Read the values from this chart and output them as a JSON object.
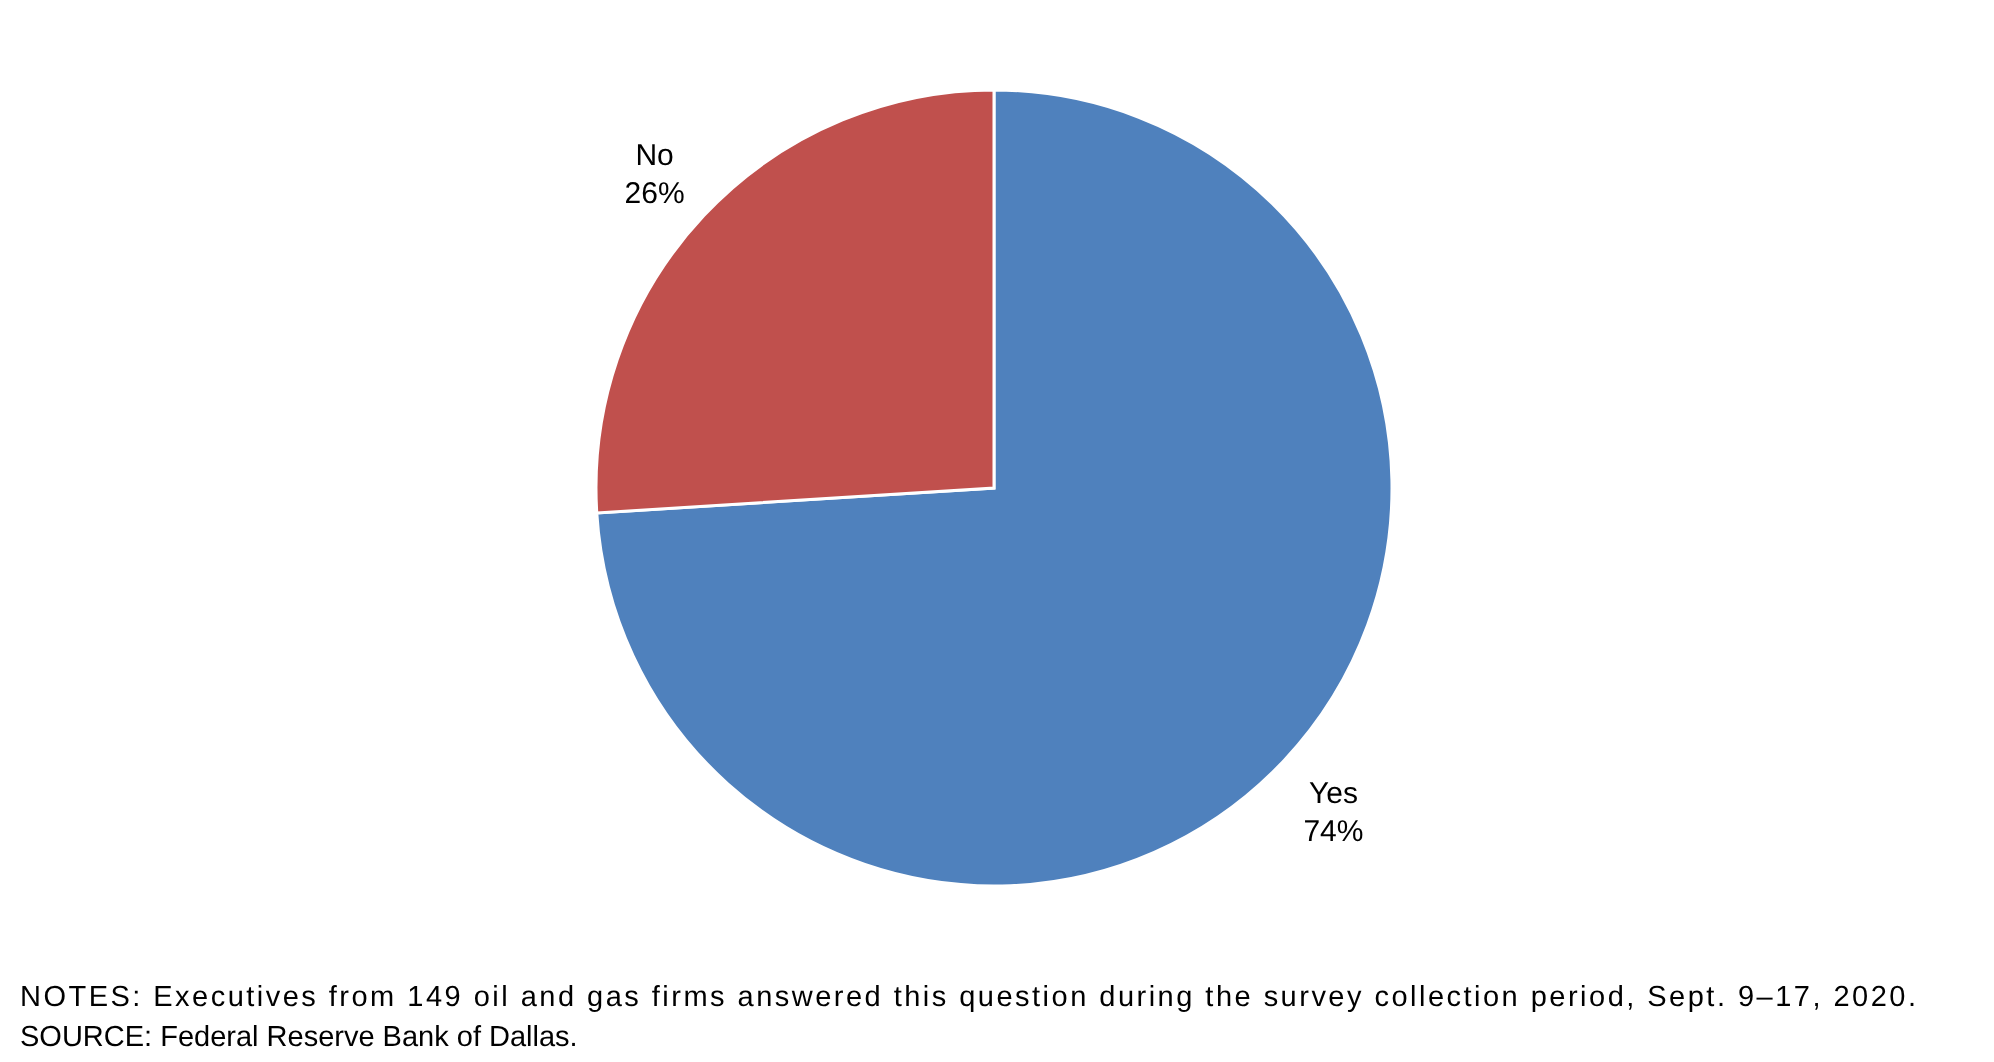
{
  "chart_data": {
    "type": "pie",
    "categories": [
      "Yes",
      "No"
    ],
    "values": [
      74,
      26
    ],
    "colors": [
      "#4f81bd",
      "#c0504d"
    ],
    "value_labels": [
      "74%",
      "26%"
    ],
    "legend": false,
    "annotations": [
      "NOTES: Executives from 149 oil and gas firms answered this question during the survey collection period, Sept. 9–17, 2020.",
      "SOURCE: Federal Reserve Bank of Dallas."
    ]
  }
}
